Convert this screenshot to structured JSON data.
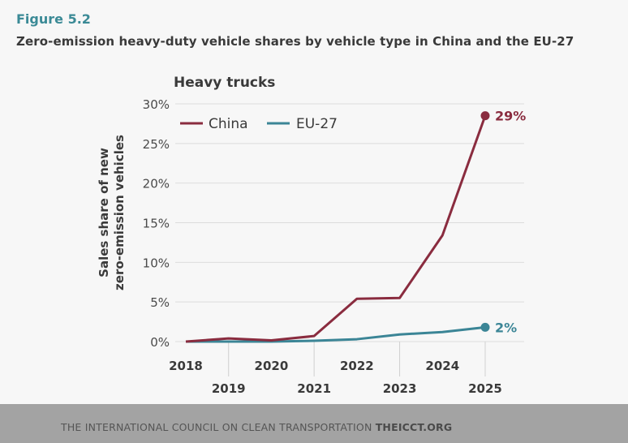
{
  "figure_label": "Figure 5.2",
  "figure_title": "Zero-emission heavy-duty vehicle shares by vehicle type in China and the EU-27",
  "footer": {
    "org": "THE INTERNATIONAL COUNCIL ON CLEAN TRANSPORTATION",
    "site": "THEICCT.ORG"
  },
  "chart_data": {
    "type": "line",
    "title": "Heavy trucks",
    "ylabel": "Sales share of new zero-emission vehicles",
    "ylabel_lines": [
      "Sales share of new",
      "zero-emission vehicles"
    ],
    "xlabel": "",
    "x": [
      2018,
      2019,
      2020,
      2021,
      2022,
      2023,
      2024,
      2025
    ],
    "x_tick_labels": [
      "2018",
      "2019",
      "2020",
      "2021",
      "2022",
      "2023",
      "2024",
      "2025"
    ],
    "ylim": [
      0,
      30
    ],
    "y_ticks": [
      0,
      5,
      10,
      15,
      20,
      25,
      30
    ],
    "y_tick_labels": [
      "0%",
      "5%",
      "10%",
      "15%",
      "20%",
      "25%",
      "30%"
    ],
    "grid": true,
    "legend_position": "top-left",
    "series": [
      {
        "name": "China",
        "color": "#8a2c3f",
        "values": [
          0,
          0.4,
          0.15,
          0.7,
          5.4,
          5.5,
          13.4,
          28.5
        ],
        "end_label": "29%"
      },
      {
        "name": "EU-27",
        "color": "#3b8596",
        "values": [
          0,
          0,
          0,
          0.1,
          0.3,
          0.9,
          1.2,
          1.8
        ],
        "end_label": "2%"
      }
    ]
  }
}
